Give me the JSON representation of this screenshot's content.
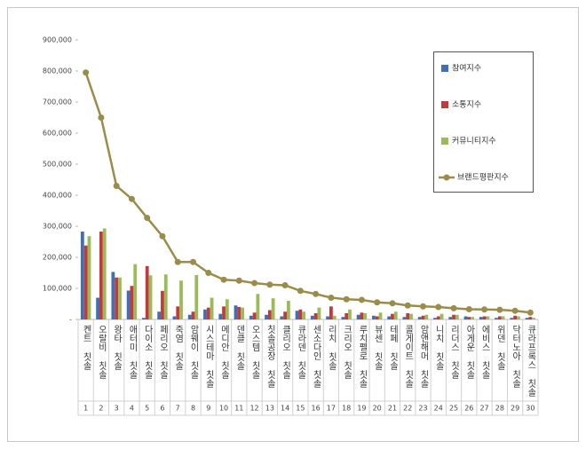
{
  "chart_data": {
    "type": "bar-line",
    "categories": [
      "켄트 칫솔",
      "오랄비 칫솔",
      "왕타 칫솔",
      "애터미 칫솔",
      "다이소 칫솔",
      "페리오 칫솔",
      "죽염 칫솔",
      "암웨이 칫솔",
      "시스테마 칫솔",
      "메디안 칫솔",
      "덴클 칫솔",
      "오스템 칫솔",
      "칫솔공장 칫솔",
      "클리오 칫솔",
      "큐라덴 칫솔",
      "센소다인 칫솔",
      "리치 칫솔",
      "크리오 칫솔",
      "루치펠로 칫솔",
      "뷰센 칫솔",
      "테페 칫솔",
      "콜게이트 칫솔",
      "암앤해머 칫솔",
      "니치 칫솔",
      "리더스 칫솔",
      "아게운 칫솔",
      "에비스 칫솔",
      "위덴 칫솔",
      "닥터노아 칫솔",
      "큐라프록스 칫솔"
    ],
    "ranks": [
      1,
      2,
      3,
      4,
      5,
      6,
      7,
      8,
      9,
      10,
      11,
      12,
      13,
      14,
      15,
      16,
      17,
      18,
      19,
      20,
      21,
      22,
      23,
      24,
      25,
      26,
      27,
      28,
      29,
      30
    ],
    "series": [
      {
        "name": "참여지수",
        "type": "bar",
        "color": "#3f6fb4",
        "values": [
          283000,
          70000,
          153000,
          93000,
          5000,
          25000,
          10000,
          15000,
          32000,
          18000,
          45000,
          12000,
          15000,
          10000,
          28000,
          12000,
          10000,
          8000,
          15000,
          12000,
          10000,
          8000,
          8000,
          5000,
          8000,
          10000,
          8000,
          5000,
          5000,
          5000
        ]
      },
      {
        "name": "소통지수",
        "type": "bar",
        "color": "#c23a3b",
        "values": [
          238000,
          283000,
          135000,
          108000,
          172000,
          92000,
          42000,
          25000,
          38000,
          42000,
          40000,
          22000,
          30000,
          25000,
          32000,
          20000,
          42000,
          20000,
          22000,
          10000,
          18000,
          20000,
          12000,
          10000,
          15000,
          8000,
          10000,
          10000,
          12000,
          8000
        ]
      },
      {
        "name": "커뮤니티지수",
        "type": "bar",
        "color": "#9bbb59",
        "values": [
          268000,
          293000,
          135000,
          178000,
          142000,
          145000,
          125000,
          143000,
          70000,
          65000,
          38000,
          82000,
          68000,
          60000,
          25000,
          38000,
          12000,
          32000,
          20000,
          22000,
          25000,
          18000,
          15000,
          18000,
          15000,
          8000,
          10000,
          10000,
          10000,
          5000
        ]
      },
      {
        "name": "브랜드평판지수",
        "type": "line",
        "color": "#9a8c4a",
        "values": [
          795000,
          650000,
          430000,
          388000,
          327000,
          268000,
          185000,
          185000,
          150000,
          128000,
          125000,
          117000,
          112000,
          110000,
          92000,
          82000,
          70000,
          65000,
          63000,
          55000,
          52000,
          45000,
          42000,
          40000,
          36000,
          33000,
          32000,
          31000,
          28000,
          22000
        ]
      }
    ],
    "ylim": [
      0,
      900000
    ],
    "yticks": [
      {
        "value": 0,
        "label": "-"
      },
      {
        "value": 100000,
        "label": "100,000"
      },
      {
        "value": 200000,
        "label": "200,000"
      },
      {
        "value": 300000,
        "label": "300,000"
      },
      {
        "value": 400000,
        "label": "400,000"
      },
      {
        "value": 500000,
        "label": "500,000"
      },
      {
        "value": 600000,
        "label": "600,000"
      },
      {
        "value": 700000,
        "label": "700,000"
      },
      {
        "value": 800000,
        "label": "800,000"
      },
      {
        "value": 900000,
        "label": "900,000"
      }
    ],
    "legend": "right"
  }
}
